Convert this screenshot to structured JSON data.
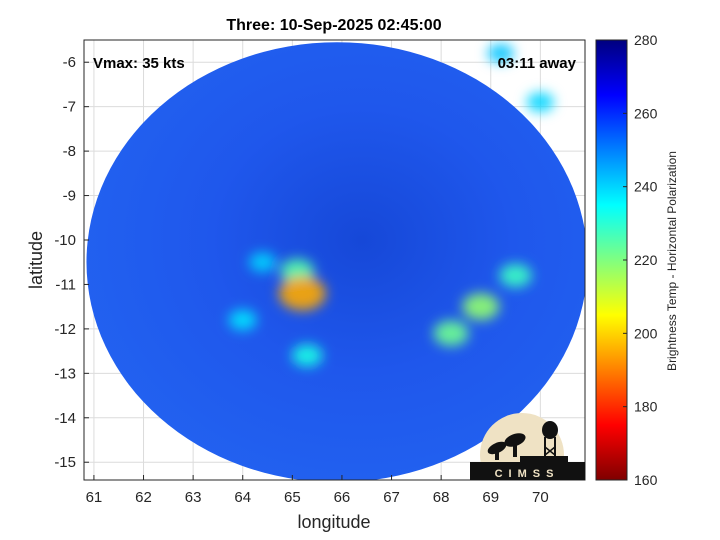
{
  "chart_data": {
    "type": "heatmap",
    "title": "Three: 10-Sep-2025 02:45:00",
    "xlabel": "longitude",
    "ylabel": "latitude",
    "xlim": [
      60.8,
      70.9
    ],
    "ylim": [
      -15.4,
      -5.5
    ],
    "x_ticks": [
      61,
      62,
      63,
      64,
      65,
      66,
      67,
      68,
      69,
      70
    ],
    "y_ticks": [
      -6,
      -7,
      -8,
      -9,
      -10,
      -11,
      -12,
      -13,
      -14,
      -15
    ],
    "grid": true,
    "swath_center": [
      65.9,
      -10.5
    ],
    "swath_radius_deg": [
      5.05,
      4.95
    ],
    "background_value": 262,
    "features": [
      {
        "lon": 65.2,
        "lat": -11.2,
        "value": 195
      },
      {
        "lon": 65.1,
        "lat": -10.7,
        "value": 225
      },
      {
        "lon": 65.3,
        "lat": -12.6,
        "value": 232
      },
      {
        "lon": 64.0,
        "lat": -11.8,
        "value": 238
      },
      {
        "lon": 64.4,
        "lat": -10.5,
        "value": 240
      },
      {
        "lon": 68.2,
        "lat": -12.1,
        "value": 222
      },
      {
        "lon": 68.8,
        "lat": -11.5,
        "value": 218
      },
      {
        "lon": 69.5,
        "lat": -10.8,
        "value": 228
      },
      {
        "lon": 70.0,
        "lat": -6.9,
        "value": 240
      },
      {
        "lon": 69.2,
        "lat": -5.8,
        "value": 242
      }
    ],
    "colorbar": {
      "label": "Brightness Temp - Horizontal Polarization",
      "range": [
        160,
        280
      ],
      "ticks": [
        280,
        260,
        240,
        220,
        200,
        180,
        160
      ]
    },
    "annotations": {
      "vmax": "Vmax: 35 kts",
      "away": "03:11 away"
    }
  },
  "logo": {
    "text": "CIMSS"
  },
  "colors": {
    "grid": "#dcdcdc",
    "axis": "#262626",
    "ocean_bg": "#1f55ea",
    "logo_bg": "#efe2c4",
    "logo_fg": "#111111"
  }
}
